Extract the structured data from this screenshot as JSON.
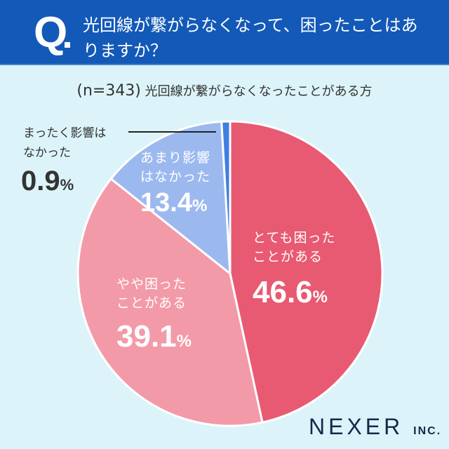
{
  "header": {
    "q": "Q",
    "title": "光回線が繋がらなくなって、困ったことはありますか？"
  },
  "subtitle": {
    "n": "(n=343)",
    "text": "光回線が繋がらなくなったことがある方"
  },
  "chart_data": {
    "type": "pie",
    "title": "光回線が繋がらなくなって、困ったことはありますか？",
    "start": "top",
    "direction": "clockwise",
    "slices": [
      {
        "label_line1": "とても困った",
        "label_line2": "ことがある",
        "value": 46.6,
        "color": "#e85a72"
      },
      {
        "label_line1": "やや困った",
        "label_line2": "ことがある",
        "value": 39.1,
        "color": "#f39aa8"
      },
      {
        "label_line1": "あまり影響",
        "label_line2": "はなかった",
        "value": 13.4,
        "color": "#9cb9ef"
      },
      {
        "label_line1": "まったく影響は",
        "label_line2": "なかった",
        "value": 0.9,
        "color": "#3f7fe0"
      }
    ],
    "unit": "%"
  },
  "logo": {
    "name": "NEXER",
    "suffix": "INC."
  }
}
